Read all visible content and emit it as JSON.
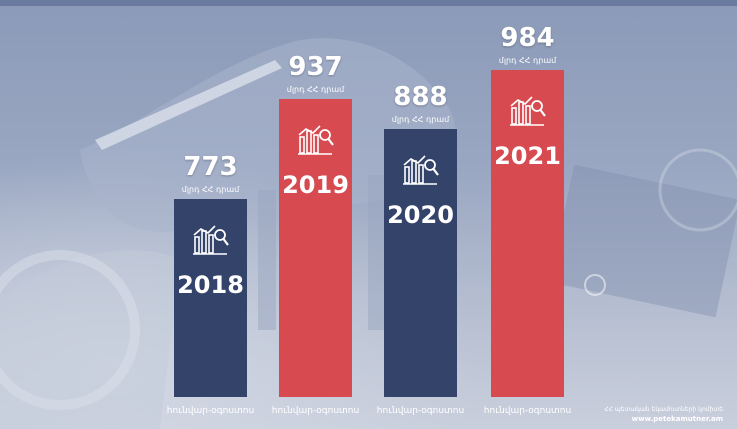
{
  "colors": {
    "navy": "#34436a",
    "red": "#d64a50",
    "text": "#ffffff"
  },
  "chart_data": {
    "type": "bar",
    "categories": [
      "2018",
      "2019",
      "2020",
      "2021"
    ],
    "values": [
      773,
      937,
      888,
      984
    ],
    "value_labels": [
      "773",
      "937",
      "888",
      "984"
    ],
    "unit_label": "մլրդ ՀՀ դրամ",
    "period_label": "հունվար-օգոստոս",
    "bar_colors": [
      "#34436a",
      "#d64a50",
      "#34436a",
      "#d64a50"
    ],
    "icon": "chart-magnifier-icon",
    "ylim": [
      0,
      1000
    ],
    "grid": false
  },
  "footer": {
    "source": "ՀՀ պետական եկամուտների կոմիտե",
    "site": "www.petekamutner.am"
  }
}
